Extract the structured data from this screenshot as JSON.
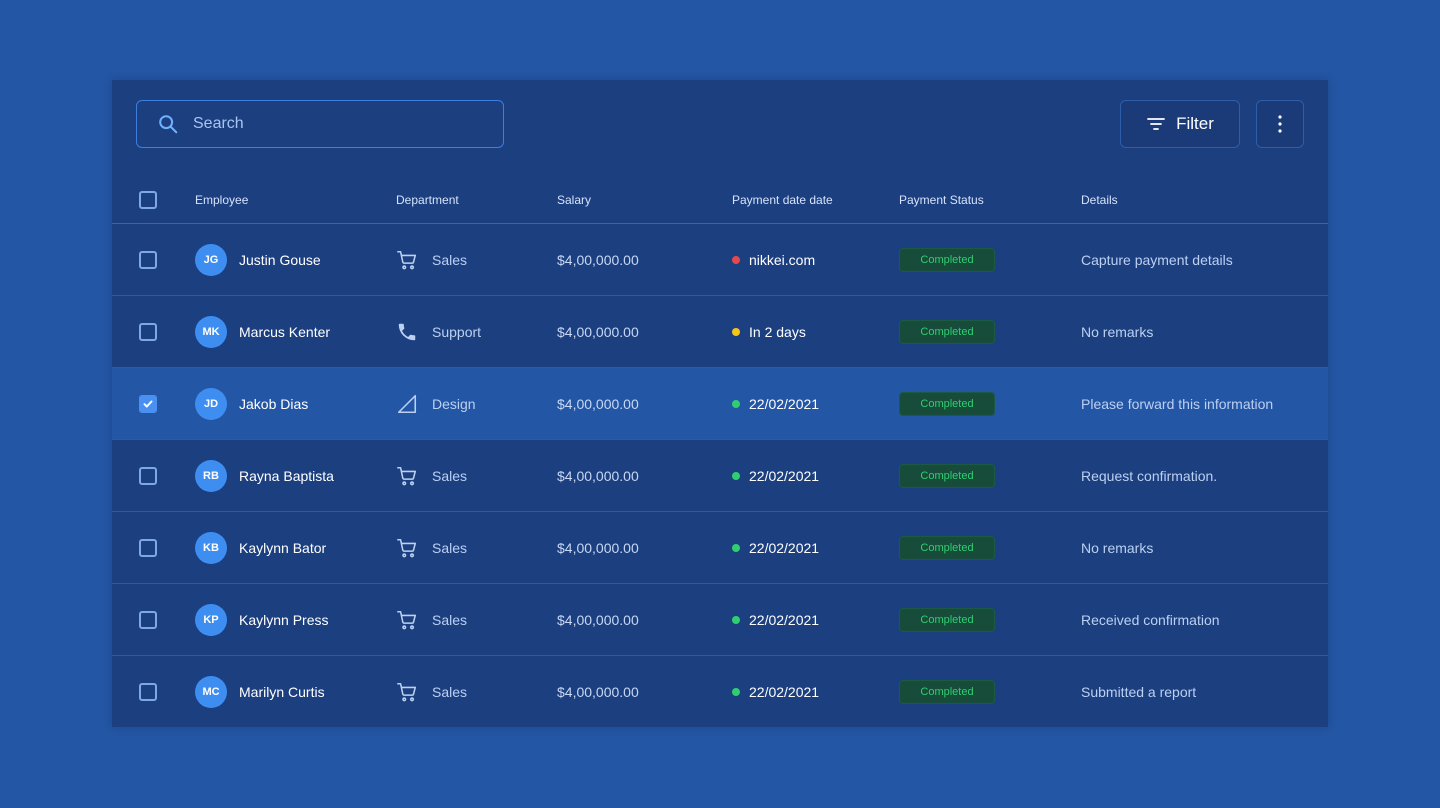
{
  "search": {
    "placeholder": "Search"
  },
  "toolbar": {
    "filter_label": "Filter"
  },
  "table": {
    "headers": {
      "employee": "Employee",
      "department": "Department",
      "salary": "Salary",
      "payment_date": "Payment date date",
      "payment_status": "Payment Status",
      "details": "Details"
    },
    "rows": [
      {
        "initials": "JG",
        "name": "Justin Gouse",
        "department": "Sales",
        "dept_icon": "cart-icon",
        "salary": "$4,00,000.00",
        "payment_date": "nikkei.com",
        "dot_color": "#e5484d",
        "status": "Completed",
        "details": "Capture payment details",
        "checked": false
      },
      {
        "initials": "MK",
        "name": "Marcus Kenter",
        "department": "Support",
        "dept_icon": "phone-icon",
        "salary": "$4,00,000.00",
        "payment_date": "In 2 days",
        "dot_color": "#f5c518",
        "status": "Completed",
        "details": "No remarks",
        "checked": false
      },
      {
        "initials": "JD",
        "name": "Jakob Dias",
        "department": "Design",
        "dept_icon": "design-icon",
        "salary": "$4,00,000.00",
        "payment_date": "22/02/2021",
        "dot_color": "#2fcf6f",
        "status": "Completed",
        "details": "Please forward this information",
        "checked": true
      },
      {
        "initials": "RB",
        "name": "Rayna Baptista",
        "department": "Sales",
        "dept_icon": "cart-icon",
        "salary": "$4,00,000.00",
        "payment_date": "22/02/2021",
        "dot_color": "#2fcf6f",
        "status": "Completed",
        "details": "Request confirmation.",
        "checked": false
      },
      {
        "initials": "KB",
        "name": "Kaylynn Bator",
        "department": "Sales",
        "dept_icon": "cart-icon",
        "salary": "$4,00,000.00",
        "payment_date": "22/02/2021",
        "dot_color": "#2fcf6f",
        "status": "Completed",
        "details": "No remarks",
        "checked": false
      },
      {
        "initials": "KP",
        "name": "Kaylynn Press",
        "department": "Sales",
        "dept_icon": "cart-icon",
        "salary": "$4,00,000.00",
        "payment_date": "22/02/2021",
        "dot_color": "#2fcf6f",
        "status": "Completed",
        "details": "Received confirmation",
        "checked": false
      },
      {
        "initials": "MC",
        "name": "Marilyn Curtis",
        "department": "Sales",
        "dept_icon": "cart-icon",
        "salary": "$4,00,000.00",
        "payment_date": "22/02/2021",
        "dot_color": "#2fcf6f",
        "status": "Completed",
        "details": "Submitted a report",
        "checked": false
      }
    ]
  },
  "colors": {
    "page_bg": "#2356a4",
    "card_bg": "#1c3f80",
    "accent": "#3e8ef2",
    "status_green": "#2fcf6f"
  }
}
